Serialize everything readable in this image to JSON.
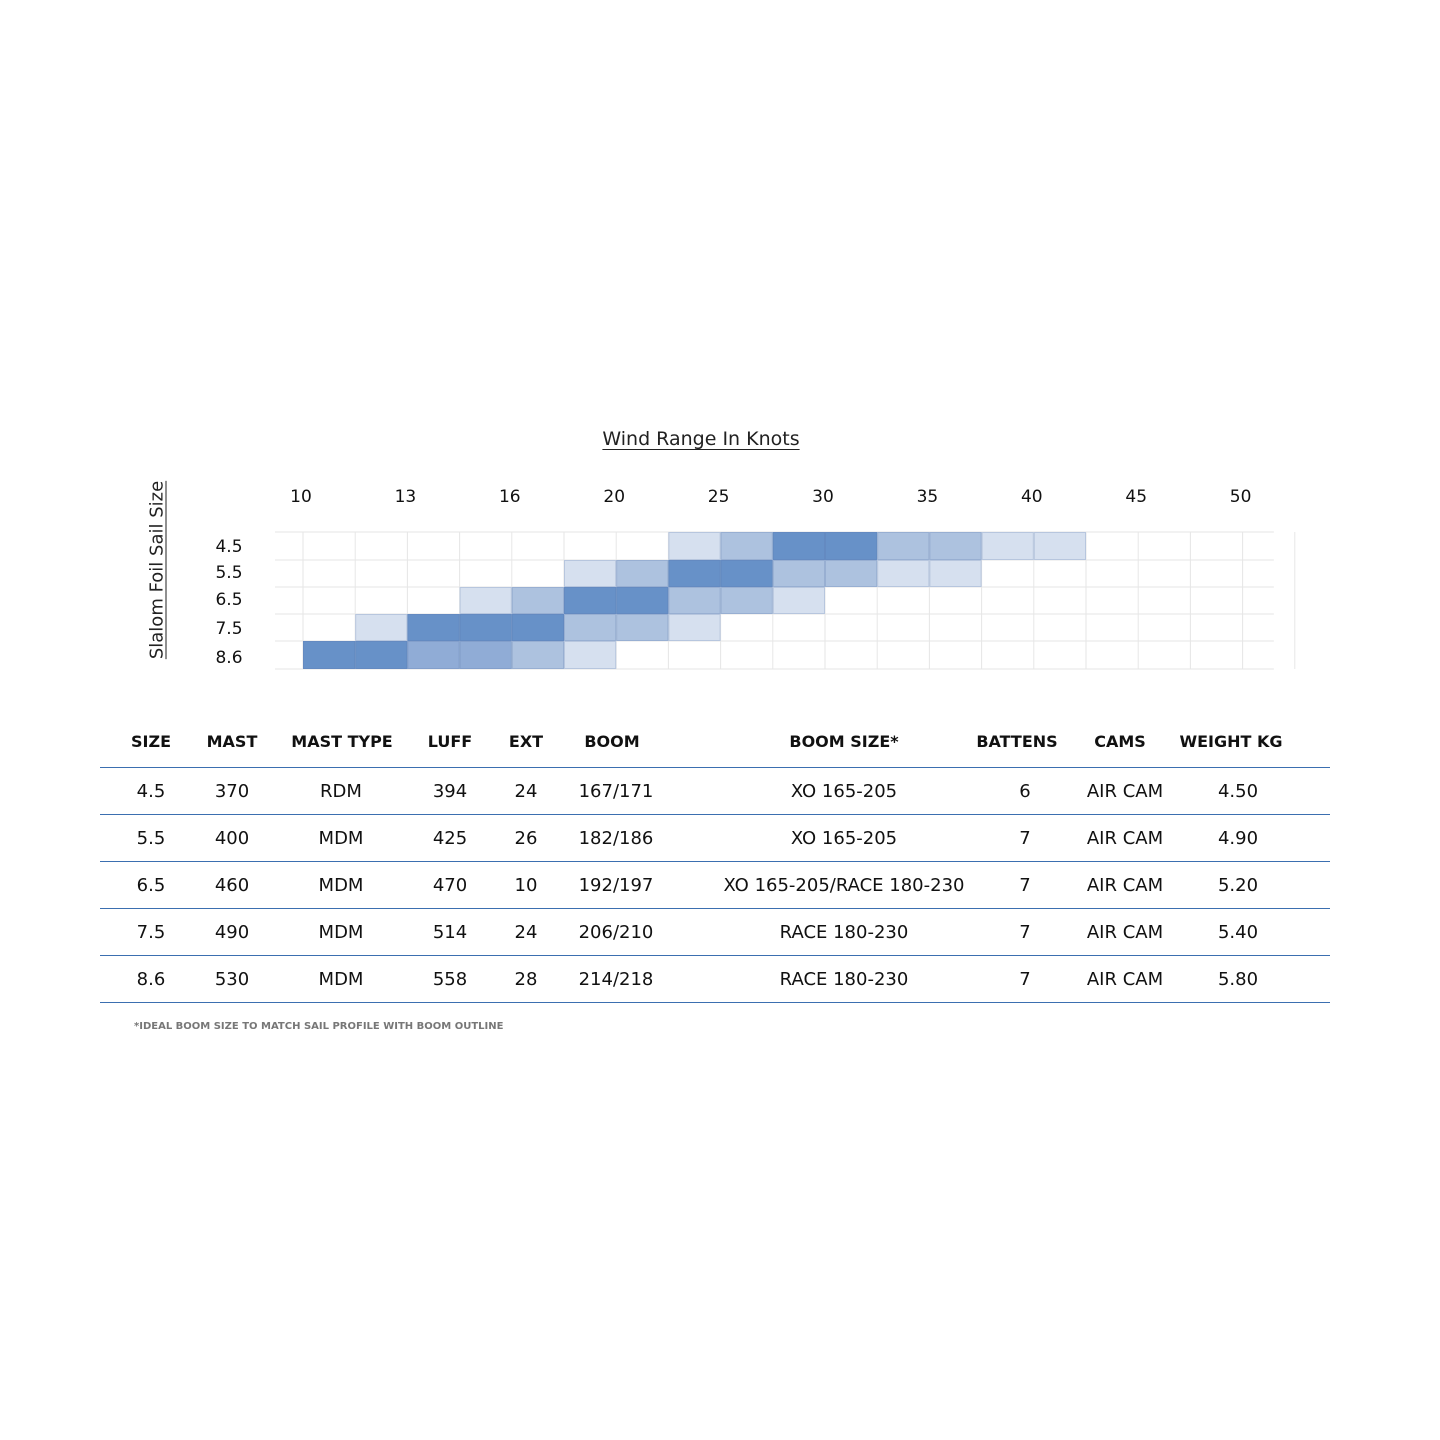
{
  "chart_data": {
    "type": "heatmap",
    "title": "Wind Range In Knots",
    "ylabel": "Slalom Foil Sail Size",
    "x_tick_labels": [
      "10",
      "13",
      "16",
      "20",
      "25",
      "30",
      "35",
      "40",
      "45",
      "50"
    ],
    "x_columns": 18,
    "rows": [
      "4.5",
      "5.5",
      "6.5",
      "7.5",
      "8.6"
    ],
    "colors": {
      "level1": "#d6e0ef",
      "level2": "#adc2df",
      "level3": "#90acd6",
      "level4": "#6791c8",
      "grid": "#e6e6e6"
    },
    "cells": [
      [
        0,
        0,
        0,
        0,
        0,
        0,
        0,
        1,
        2,
        4,
        4,
        2,
        2,
        1,
        1,
        0,
        0,
        0
      ],
      [
        0,
        0,
        0,
        0,
        0,
        1,
        2,
        4,
        4,
        2,
        2,
        1,
        1,
        0,
        0,
        0,
        0,
        0
      ],
      [
        0,
        0,
        0,
        1,
        2,
        4,
        4,
        2,
        2,
        1,
        0,
        0,
        0,
        0,
        0,
        0,
        0,
        0
      ],
      [
        0,
        1,
        4,
        4,
        4,
        2,
        2,
        1,
        0,
        0,
        0,
        0,
        0,
        0,
        0,
        0,
        0,
        0
      ],
      [
        4,
        4,
        3,
        3,
        2,
        1,
        0,
        0,
        0,
        0,
        0,
        0,
        0,
        0,
        0,
        0,
        0,
        0
      ]
    ],
    "grid": true
  },
  "table": {
    "headers": [
      "SIZE",
      "MAST",
      "MAST TYPE",
      "LUFF",
      "EXT",
      "BOOM",
      "BOOM SIZE*",
      "BATTENS",
      "CAMS",
      "WEIGHT KG"
    ],
    "rows": [
      [
        "4.5",
        "370",
        "RDM",
        "394",
        "24",
        "167/171",
        "XO 165-205",
        "6",
        "AIR CAM",
        "4.50"
      ],
      [
        "5.5",
        "400",
        "MDM",
        "425",
        "26",
        "182/186",
        "XO 165-205",
        "7",
        "AIR CAM",
        "4.90"
      ],
      [
        "6.5",
        "460",
        "MDM",
        "470",
        "10",
        "192/197",
        "XO 165-205/RACE 180-230",
        "7",
        "AIR CAM",
        "5.20"
      ],
      [
        "7.5",
        "490",
        "MDM",
        "514",
        "24",
        "206/210",
        "RACE 180-230",
        "7",
        "AIR CAM",
        "5.40"
      ],
      [
        "8.6",
        "530",
        "MDM",
        "558",
        "28",
        "214/218",
        "RACE 180-230",
        "7",
        "AIR CAM",
        "5.80"
      ]
    ]
  },
  "footnote": "*IDEAL BOOM SIZE TO MATCH SAIL PROFILE WITH BOOM OUTLINE"
}
